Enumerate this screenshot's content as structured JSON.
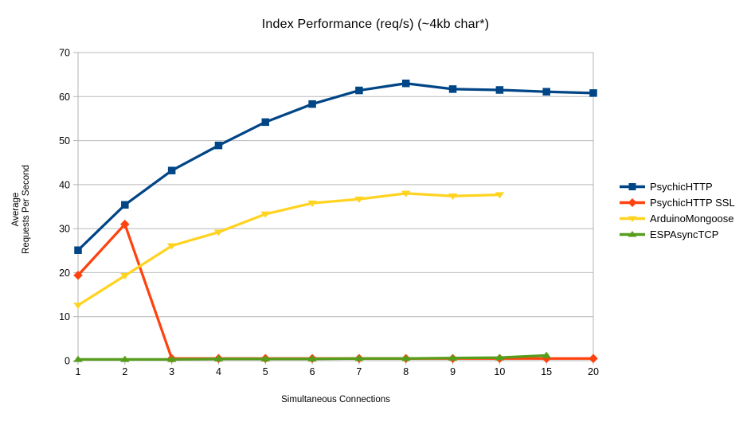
{
  "chart_data": {
    "type": "line",
    "title": "Index Performance (req/s) (~4kb char*)",
    "xlabel": "Simultaneous Connections",
    "ylabel": "Average\nRequests Per Second",
    "categories": [
      "1",
      "2",
      "3",
      "4",
      "5",
      "6",
      "7",
      "8",
      "9",
      "10",
      "15",
      "20"
    ],
    "ylim": [
      0,
      70
    ],
    "ytick_step": 10,
    "grid": true,
    "legend_position": "right",
    "colors": {
      "grid": "#b9b9b9",
      "axis": "#b3b3b3",
      "text": "#000000",
      "background": "#ffffff"
    },
    "series": [
      {
        "name": "PsychicHTTP",
        "color": "#004586",
        "marker": "square",
        "values": [
          25.1,
          35.4,
          43.2,
          48.9,
          54.2,
          58.3,
          61.4,
          63.0,
          61.7,
          61.5,
          61.1,
          60.8
        ]
      },
      {
        "name": "PsychicHTTP SSL",
        "color": "#ff420e",
        "marker": "diamond",
        "values": [
          19.4,
          31.0,
          0.5,
          0.5,
          0.5,
          0.5,
          0.5,
          0.5,
          0.5,
          0.5,
          0.5,
          0.5
        ]
      },
      {
        "name": "ArduinoMongoose",
        "color": "#ffd320",
        "marker": "triangle-down",
        "values": [
          12.6,
          19.3,
          26.1,
          29.2,
          33.3,
          35.8,
          36.7,
          38.0,
          37.4,
          37.7,
          null,
          null
        ]
      },
      {
        "name": "ESPAsyncTCP",
        "color": "#579d1c",
        "marker": "triangle-up",
        "values": [
          0.3,
          0.3,
          0.3,
          0.4,
          0.4,
          0.4,
          0.5,
          0.5,
          0.6,
          0.7,
          1.2,
          null
        ]
      }
    ]
  }
}
